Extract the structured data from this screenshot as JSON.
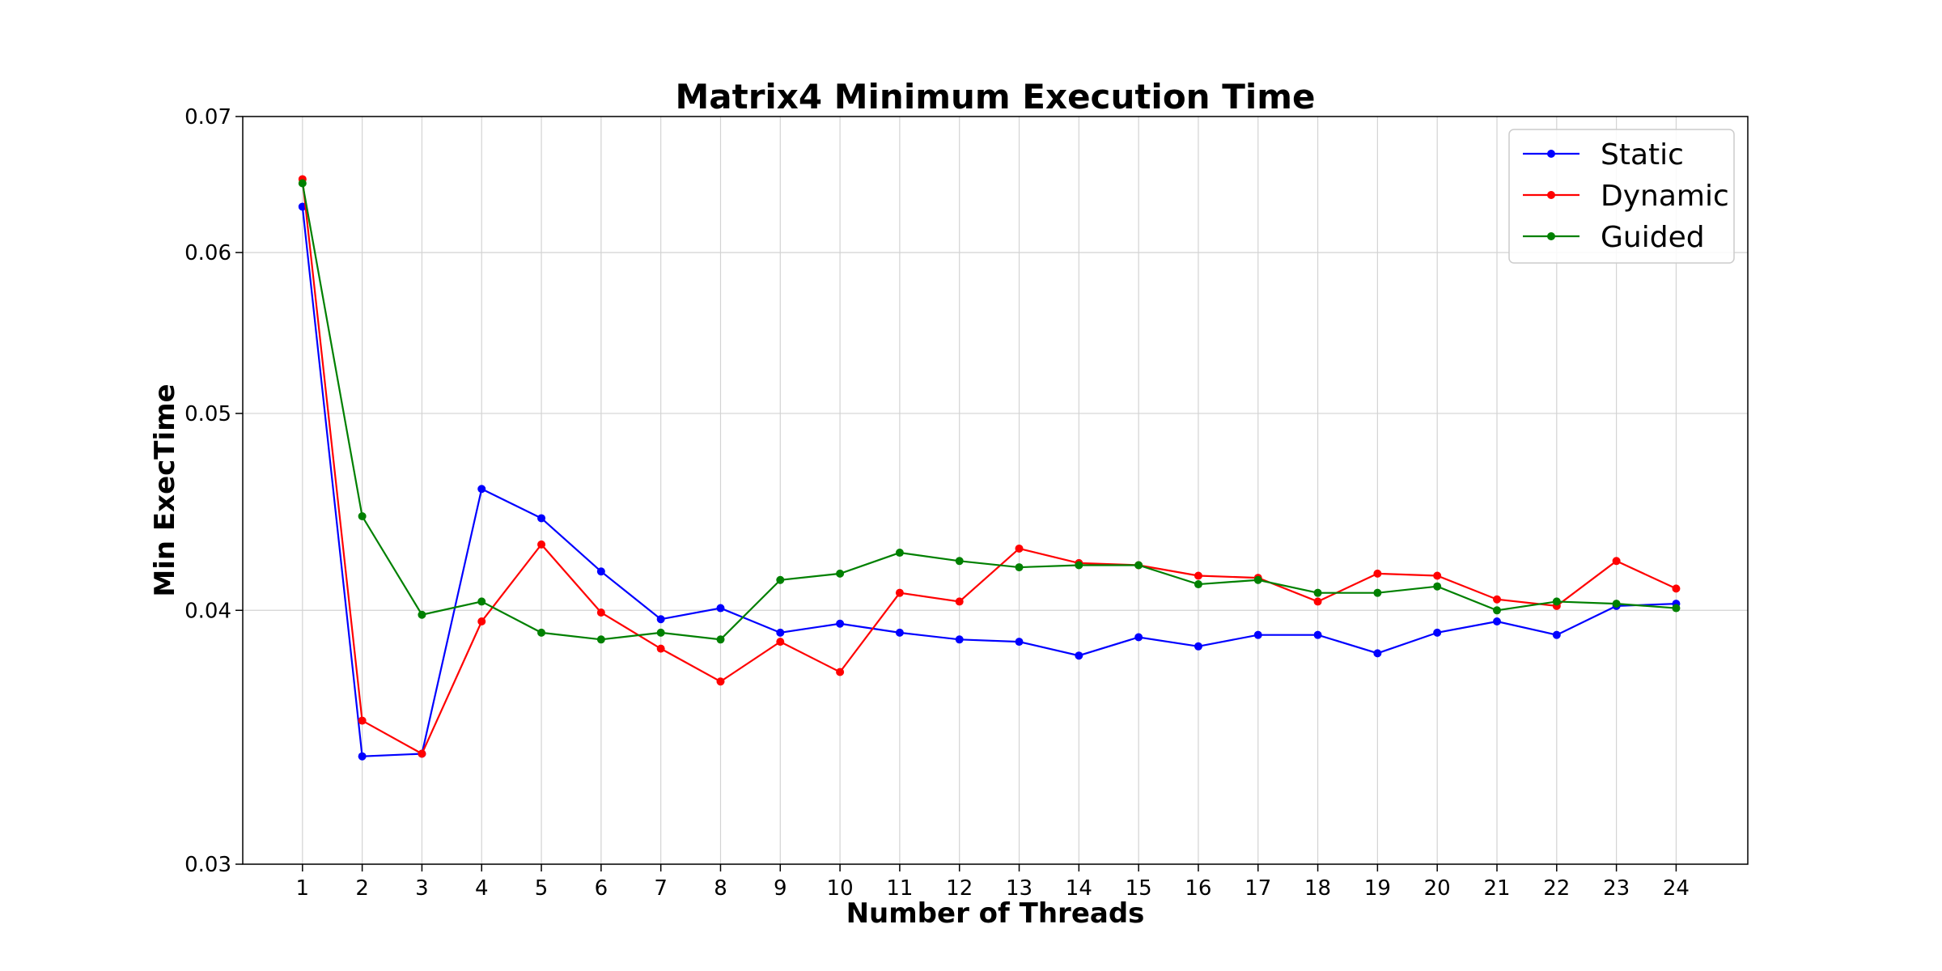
{
  "chart_data": {
    "type": "line",
    "title": "Matrix4 Minimum Execution Time",
    "xlabel": "Number of Threads",
    "ylabel": "Min ExecTime",
    "x": [
      1,
      2,
      3,
      4,
      5,
      6,
      7,
      8,
      9,
      10,
      11,
      12,
      13,
      14,
      15,
      16,
      17,
      18,
      19,
      20,
      21,
      22,
      23,
      24
    ],
    "yscale": "log",
    "ylim": [
      0.03,
      0.07
    ],
    "yticks": [
      "0.03",
      "0.04",
      "0.05",
      "0.06",
      "0.07"
    ],
    "xticks": [
      "1",
      "2",
      "3",
      "4",
      "5",
      "6",
      "7",
      "8",
      "9",
      "10",
      "11",
      "12",
      "13",
      "14",
      "15",
      "16",
      "17",
      "18",
      "19",
      "20",
      "21",
      "22",
      "23",
      "24"
    ],
    "grid": true,
    "legend_position": "top-right",
    "series": [
      {
        "name": "Static",
        "color": "#0000ff",
        "values": [
          0.0632,
          0.0339,
          0.034,
          0.0459,
          0.0444,
          0.0418,
          0.0396,
          0.0401,
          0.039,
          0.0394,
          0.039,
          0.0387,
          0.0386,
          0.038,
          0.0388,
          0.0384,
          0.0389,
          0.0389,
          0.0381,
          0.039,
          0.0395,
          0.0389,
          0.0402,
          0.0403
        ]
      },
      {
        "name": "Dynamic",
        "color": "#ff0000",
        "values": [
          0.0652,
          0.0353,
          0.034,
          0.0395,
          0.0431,
          0.0399,
          0.0383,
          0.0369,
          0.0386,
          0.0373,
          0.0408,
          0.0404,
          0.0429,
          0.0422,
          0.0421,
          0.0416,
          0.0415,
          0.0404,
          0.0417,
          0.0416,
          0.0405,
          0.0402,
          0.0423,
          0.041
        ]
      },
      {
        "name": "Guided",
        "color": "#008000",
        "values": [
          0.0649,
          0.0445,
          0.0398,
          0.0404,
          0.039,
          0.0387,
          0.039,
          0.0387,
          0.0414,
          0.0417,
          0.0427,
          0.0423,
          0.042,
          0.0421,
          0.0421,
          0.0412,
          0.0414,
          0.0408,
          0.0408,
          0.0411,
          0.04,
          0.0404,
          0.0403,
          0.0401
        ]
      }
    ]
  }
}
